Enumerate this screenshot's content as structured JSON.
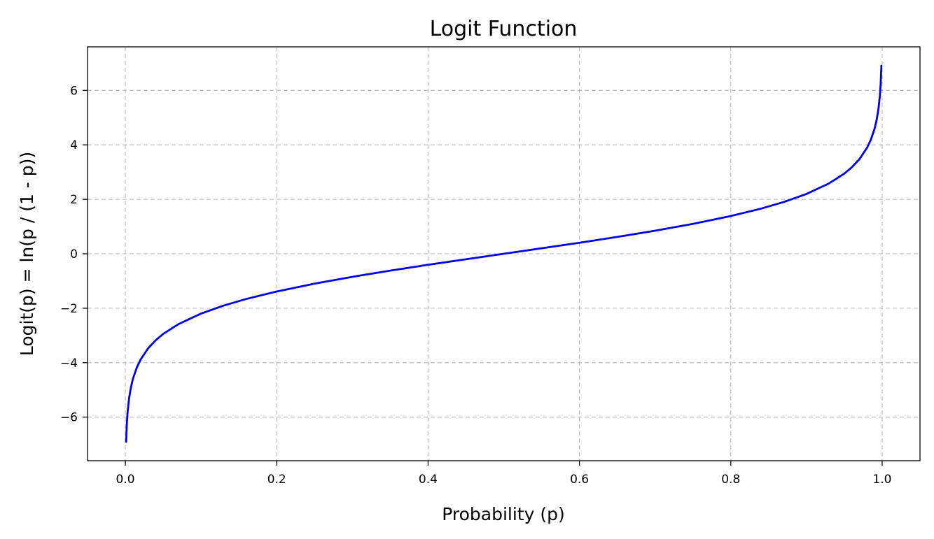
{
  "chart_data": {
    "type": "line",
    "title": "Logit Function",
    "xlabel": "Probability (p)",
    "ylabel": "Logit(p) = ln(p / (1 - p))",
    "xlim": [
      -0.05,
      1.05
    ],
    "ylim": [
      -7.6,
      7.6
    ],
    "xticks": [
      0.0,
      0.2,
      0.4,
      0.6,
      0.8,
      1.0
    ],
    "xtick_labels": [
      "0.0",
      "0.2",
      "0.4",
      "0.6",
      "0.8",
      "1.0"
    ],
    "yticks": [
      -6,
      -4,
      -2,
      0,
      2,
      4,
      6
    ],
    "ytick_labels": [
      "−6",
      "−4",
      "−2",
      "0",
      "2",
      "4",
      "6"
    ],
    "grid": true,
    "series": [
      {
        "color": "#0000ee",
        "x": [
          0.001,
          0.002,
          0.003,
          0.005,
          0.0075,
          0.01,
          0.015,
          0.02,
          0.03,
          0.04,
          0.05,
          0.07,
          0.1,
          0.13,
          0.16,
          0.2,
          0.25,
          0.3,
          0.35,
          0.4,
          0.45,
          0.5,
          0.55,
          0.6,
          0.65,
          0.7,
          0.75,
          0.8,
          0.84,
          0.87,
          0.9,
          0.93,
          0.95,
          0.96,
          0.97,
          0.98,
          0.985,
          0.99,
          0.9925,
          0.995,
          0.997,
          0.998,
          0.999
        ],
        "y": [
          -6.907,
          -6.213,
          -5.806,
          -5.293,
          -4.886,
          -4.595,
          -4.185,
          -3.892,
          -3.476,
          -3.178,
          -2.944,
          -2.587,
          -2.197,
          -1.901,
          -1.658,
          -1.386,
          -1.099,
          -0.847,
          -0.619,
          -0.405,
          -0.201,
          0.0,
          0.201,
          0.405,
          0.619,
          0.847,
          1.099,
          1.386,
          1.658,
          1.901,
          2.197,
          2.587,
          2.944,
          3.178,
          3.476,
          3.892,
          4.185,
          4.595,
          4.886,
          5.293,
          5.806,
          6.213,
          6.907
        ]
      }
    ]
  }
}
